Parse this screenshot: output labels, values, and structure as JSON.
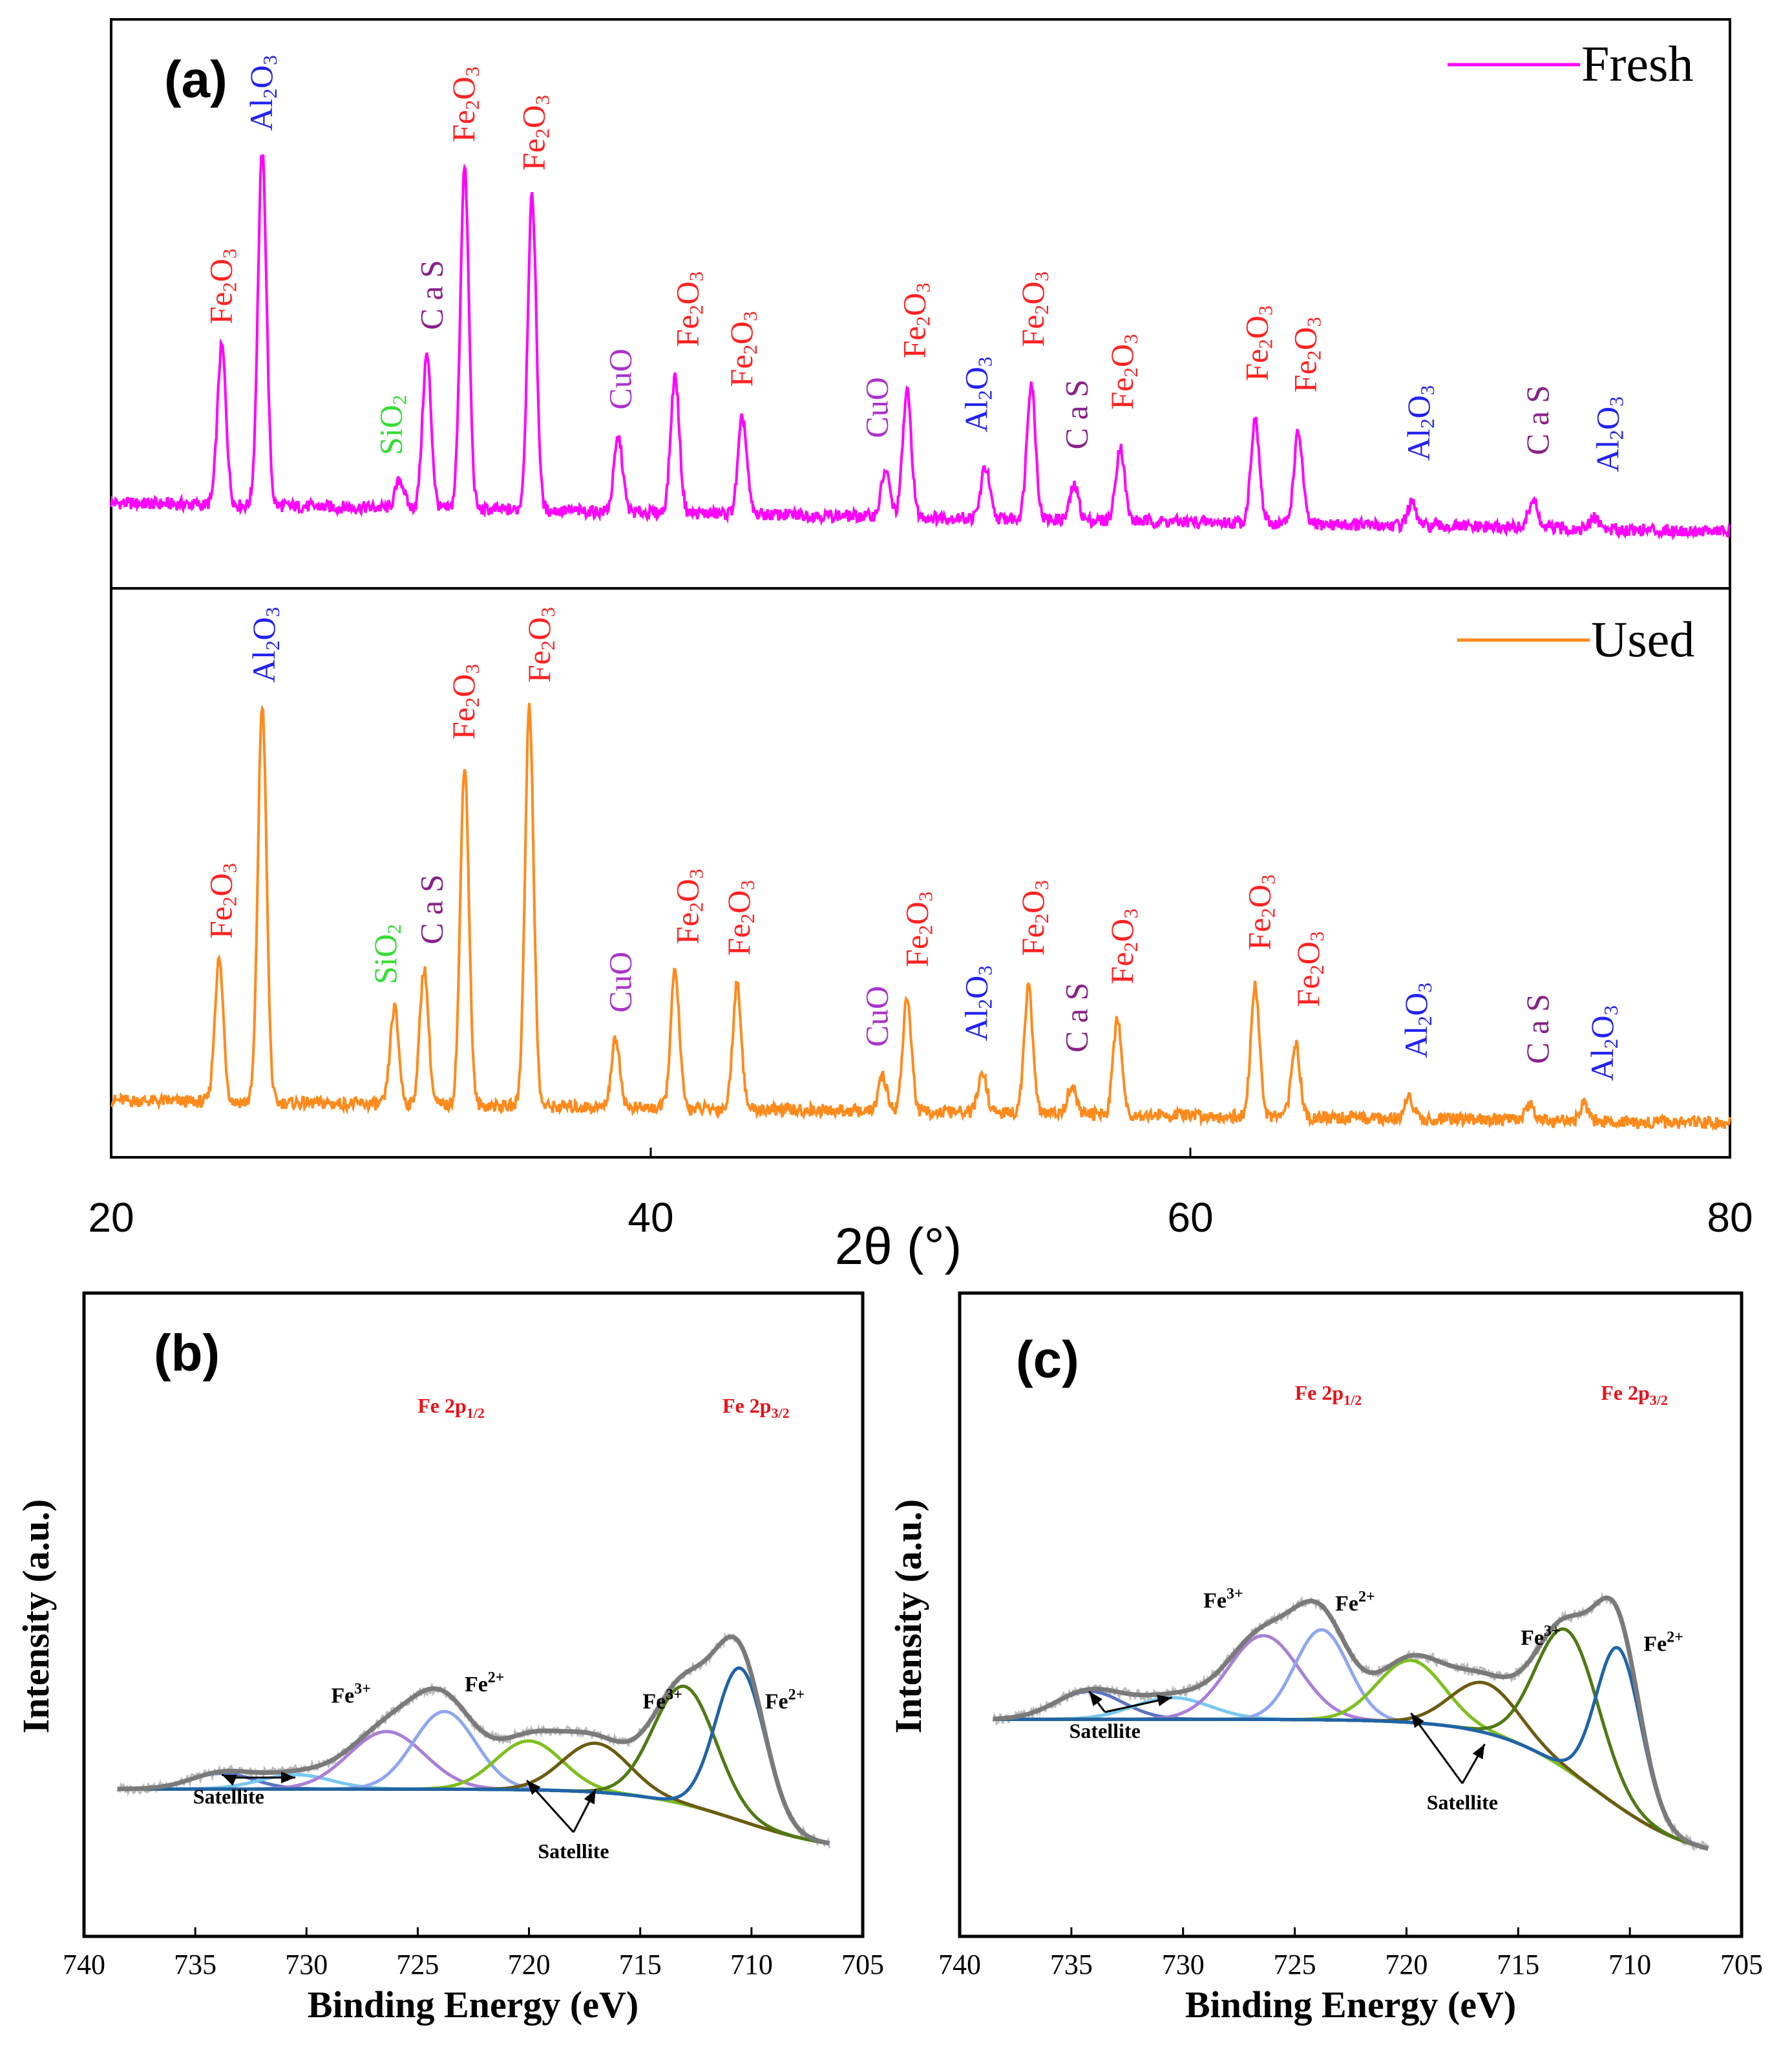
{
  "chart_data": [
    {
      "panel": "(a)",
      "type": "line",
      "xlabel": "2θ (°)",
      "xlim": [
        20,
        80
      ],
      "xticks": [
        "20",
        "40",
        "60",
        "80"
      ],
      "series": [
        {
          "name": "Fresh",
          "color": "#ff00ff",
          "peaks": [
            [
              24.1,
              0.28
            ],
            [
              25.6,
              0.62
            ],
            [
              30.7,
              0.05
            ],
            [
              31.7,
              0.27
            ],
            [
              33.1,
              0.6
            ],
            [
              35.6,
              0.55
            ],
            [
              38.8,
              0.13
            ],
            [
              40.9,
              0.24
            ],
            [
              43.4,
              0.17
            ],
            [
              48.7,
              0.08
            ],
            [
              49.5,
              0.22
            ],
            [
              52.4,
              0.09
            ],
            [
              54.1,
              0.24
            ],
            [
              55.7,
              0.06
            ],
            [
              57.4,
              0.13
            ],
            [
              62.4,
              0.18
            ],
            [
              64.0,
              0.16
            ],
            [
              68.2,
              0.04
            ],
            [
              72.7,
              0.05
            ],
            [
              75.0,
              0.02
            ]
          ],
          "labels": [
            {
              "x": 24.2,
              "text": "Fe2O3",
              "color": "#ff2222"
            },
            {
              "x": 25.7,
              "text": "Al2O3",
              "color": "#2222ee"
            },
            {
              "x": 30.5,
              "text": "SiO2",
              "color": "#33dd33"
            },
            {
              "x": 32.0,
              "text": "C a S",
              "color": "#882288"
            },
            {
              "x": 33.2,
              "text": "Fe2O3",
              "color": "#ff2222"
            },
            {
              "x": 35.8,
              "text": "Fe2O3",
              "color": "#ff2222"
            },
            {
              "x": 39.0,
              "text": "CuO",
              "color": "#aa33cc"
            },
            {
              "x": 41.5,
              "text": "Fe2O3",
              "color": "#ff2222"
            },
            {
              "x": 43.5,
              "text": "Fe2O3",
              "color": "#ff2222"
            },
            {
              "x": 48.5,
              "text": "CuO",
              "color": "#aa33cc"
            },
            {
              "x": 49.9,
              "text": "Fe2O3",
              "color": "#ff2222"
            },
            {
              "x": 52.2,
              "text": "Al2O3",
              "color": "#2222ee"
            },
            {
              "x": 54.3,
              "text": "Fe2O3",
              "color": "#ff2222"
            },
            {
              "x": 55.9,
              "text": "C a S",
              "color": "#882288"
            },
            {
              "x": 57.6,
              "text": "Fe2O3",
              "color": "#ff2222"
            },
            {
              "x": 62.6,
              "text": "Fe2O3",
              "color": "#ff2222"
            },
            {
              "x": 64.4,
              "text": "Fe2O3",
              "color": "#ff2222"
            },
            {
              "x": 68.6,
              "text": "Al2O3",
              "color": "#2222ee"
            },
            {
              "x": 73.0,
              "text": "C a S",
              "color": "#882288"
            },
            {
              "x": 75.6,
              "text": "Al2O3",
              "color": "#2222ee"
            }
          ]
        },
        {
          "name": "Used",
          "color": "#ff8a1c",
          "peaks": [
            [
              24.0,
              0.25
            ],
            [
              25.6,
              0.7
            ],
            [
              30.5,
              0.17
            ],
            [
              31.6,
              0.24
            ],
            [
              33.1,
              0.6
            ],
            [
              35.5,
              0.7
            ],
            [
              38.7,
              0.12
            ],
            [
              40.9,
              0.24
            ],
            [
              43.2,
              0.22
            ],
            [
              48.6,
              0.06
            ],
            [
              49.5,
              0.2
            ],
            [
              52.3,
              0.07
            ],
            [
              54.0,
              0.22
            ],
            [
              55.6,
              0.05
            ],
            [
              57.3,
              0.17
            ],
            [
              62.4,
              0.23
            ],
            [
              63.9,
              0.13
            ],
            [
              68.1,
              0.04
            ],
            [
              72.6,
              0.03
            ],
            [
              74.6,
              0.03
            ]
          ],
          "labels": [
            {
              "x": 24.2,
              "text": "Fe2O3",
              "color": "#ff2222"
            },
            {
              "x": 25.8,
              "text": "Al2O3",
              "color": "#2222ee"
            },
            {
              "x": 30.3,
              "text": "SiO2",
              "color": "#33dd33"
            },
            {
              "x": 32.0,
              "text": "C a S",
              "color": "#882288"
            },
            {
              "x": 33.2,
              "text": "Fe2O3",
              "color": "#ff2222"
            },
            {
              "x": 36.0,
              "text": "Fe2O3",
              "color": "#ff2222"
            },
            {
              "x": 39.0,
              "text": "CuO",
              "color": "#aa33cc"
            },
            {
              "x": 41.5,
              "text": "Fe2O3",
              "color": "#ff2222"
            },
            {
              "x": 43.4,
              "text": "Fe2O3",
              "color": "#ff2222"
            },
            {
              "x": 48.5,
              "text": "CuO",
              "color": "#aa33cc"
            },
            {
              "x": 50.0,
              "text": "Fe2O3",
              "color": "#ff2222"
            },
            {
              "x": 52.2,
              "text": "Al2O3",
              "color": "#2222ee"
            },
            {
              "x": 54.3,
              "text": "Fe2O3",
              "color": "#ff2222"
            },
            {
              "x": 55.9,
              "text": "C a S",
              "color": "#882288"
            },
            {
              "x": 57.6,
              "text": "Fe2O3",
              "color": "#ff2222"
            },
            {
              "x": 62.7,
              "text": "Fe2O3",
              "color": "#ff2222"
            },
            {
              "x": 64.5,
              "text": "Fe2O3",
              "color": "#ff2222"
            },
            {
              "x": 68.5,
              "text": "Al2O3",
              "color": "#2222ee"
            },
            {
              "x": 73.0,
              "text": "C a S",
              "color": "#882288"
            },
            {
              "x": 75.4,
              "text": "Al2O3",
              "color": "#2222ee"
            }
          ]
        }
      ]
    },
    {
      "panel": "(b)",
      "type": "line",
      "xlabel": "Binding Energy (eV)",
      "ylabel": "Intensity (a.u.)",
      "xlim": [
        740,
        705
      ],
      "xticks": [
        "740",
        "735",
        "730",
        "725",
        "720",
        "715",
        "710",
        "705"
      ],
      "region_labels": [
        {
          "text": "Fe 2p",
          "sub": "1/2",
          "x": 723.5
        },
        {
          "text": "Fe 2p",
          "sub": "3/2",
          "x": 709.8
        }
      ],
      "background": {
        "start": 0.22,
        "end": 0.0,
        "edge": 710.5,
        "color": "#b8860b"
      },
      "components": [
        {
          "center": 733.8,
          "height": 0.055,
          "width": 1.4,
          "color": "#5b73c4"
        },
        {
          "center": 730.5,
          "height": 0.05,
          "width": 1.6,
          "color": "#77c8ee"
        },
        {
          "center": 726.4,
          "height": 0.2,
          "width": 1.7,
          "color": "#a97fd6"
        },
        {
          "center": 723.8,
          "height": 0.27,
          "width": 1.4,
          "color": "#8fa6ef"
        },
        {
          "center": 720.0,
          "height": 0.17,
          "width": 1.5,
          "color": "#7fbf1f"
        },
        {
          "center": 717.0,
          "height": 0.17,
          "width": 1.5,
          "color": "#6b5b10"
        },
        {
          "center": 713.0,
          "height": 0.41,
          "width": 1.4,
          "color": "#4f7a12"
        },
        {
          "center": 710.5,
          "height": 0.53,
          "width": 1.1,
          "color": "#1f63a8"
        }
      ],
      "envelope_color": "#7a7a7a",
      "raw_color": "#bbbbbb",
      "annotations": [
        {
          "text": "Fe",
          "sup": "3+",
          "x": 728.0,
          "y": 0.52
        },
        {
          "text": "Fe",
          "sup": "2+",
          "x": 722.0,
          "y": 0.56
        },
        {
          "text": "Fe",
          "sup": "3+",
          "x": 714.0,
          "y": 0.5
        },
        {
          "text": "Fe",
          "sup": "2+",
          "x": 708.5,
          "y": 0.5
        }
      ],
      "satellite_labels": [
        {
          "text": "Satellite",
          "x": 733.5,
          "y": 0.17,
          "targets": [
            [
              733.8,
              0.27
            ],
            [
              730.5,
              0.26
            ]
          ]
        },
        {
          "text": "Satellite",
          "x": 718.0,
          "y": -0.02,
          "targets": [
            [
              720.1,
              0.25
            ],
            [
              717.0,
              0.22
            ]
          ]
        }
      ]
    },
    {
      "panel": "(c)",
      "type": "line",
      "xlabel": "Binding Energy (eV)",
      "ylabel": "Intensity (a.u.)",
      "xlim": [
        740,
        705
      ],
      "xticks": [
        "740",
        "735",
        "730",
        "725",
        "720",
        "715",
        "710",
        "705"
      ],
      "region_labels": [
        {
          "text": "Fe 2p",
          "sub": "1/2",
          "x": 723.5
        },
        {
          "text": "Fe 2p",
          "sub": "3/2",
          "x": 709.8
        }
      ],
      "background": {
        "start": 0.46,
        "end": 0.0,
        "edge": 711.5,
        "color": "#b8860b"
      },
      "components": [
        {
          "center": 734.2,
          "height": 0.09,
          "width": 1.5,
          "color": "#5b73c4"
        },
        {
          "center": 730.5,
          "height": 0.07,
          "width": 1.7,
          "color": "#77c8ee"
        },
        {
          "center": 726.4,
          "height": 0.27,
          "width": 1.6,
          "color": "#a97fd6"
        },
        {
          "center": 723.8,
          "height": 0.29,
          "width": 1.2,
          "color": "#8fa6ef"
        },
        {
          "center": 719.8,
          "height": 0.2,
          "width": 1.5,
          "color": "#7fbf1f"
        },
        {
          "center": 716.5,
          "height": 0.16,
          "width": 1.5,
          "color": "#6b5b10"
        },
        {
          "center": 712.8,
          "height": 0.45,
          "width": 1.4,
          "color": "#4f7a12"
        },
        {
          "center": 710.5,
          "height": 0.51,
          "width": 1.0,
          "color": "#1f63a8"
        }
      ],
      "envelope_color": "#7a7a7a",
      "raw_color": "#bbbbbb",
      "annotations": [
        {
          "text": "Fe",
          "sup": "3+",
          "x": 728.2,
          "y": 0.82
        },
        {
          "text": "Fe",
          "sup": "2+",
          "x": 722.3,
          "y": 0.81
        },
        {
          "text": "Fe",
          "sup": "3+",
          "x": 714.0,
          "y": 0.7
        },
        {
          "text": "Fe",
          "sup": "2+",
          "x": 708.5,
          "y": 0.68
        }
      ],
      "satellite_labels": [
        {
          "text": "Satellite",
          "x": 733.5,
          "y": 0.4,
          "targets": [
            [
              734.2,
              0.55
            ],
            [
              730.5,
              0.53
            ]
          ]
        },
        {
          "text": "Satellite",
          "x": 717.5,
          "y": 0.17,
          "targets": [
            [
              719.8,
              0.48
            ],
            [
              716.5,
              0.38
            ]
          ]
        }
      ]
    }
  ]
}
